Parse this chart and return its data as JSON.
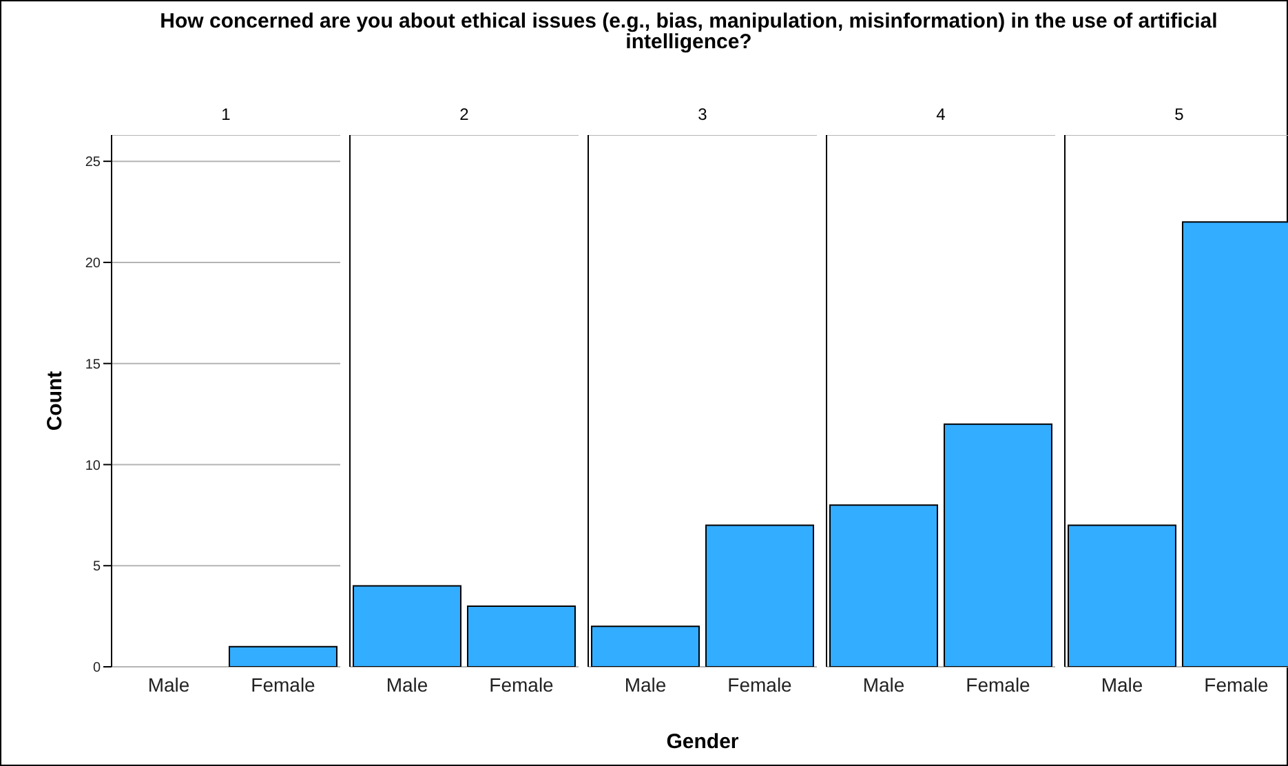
{
  "chart_data": [
    {
      "type": "bar",
      "title": "How concerned are you about ethical issues (e.g., bias, manipulation, misinformation) in the use of artificial intelligence?",
      "subtitle": "1",
      "ylabel": "Count",
      "categories": [
        "Male",
        "Female"
      ],
      "values": [
        0,
        1
      ],
      "color": "#33adff",
      "ylim": [
        0,
        26.3
      ],
      "yticks": [
        0,
        5,
        10,
        15,
        20,
        25
      ],
      "grid": "y"
    },
    {
      "type": "bar",
      "subtitle": "2",
      "categories": [
        "Male",
        "Female"
      ],
      "values": [
        4,
        3
      ],
      "color": "#33adff",
      "ylim": [
        0,
        26.3
      ],
      "yticks": [
        0,
        5,
        10,
        15,
        20,
        25
      ],
      "grid": "y",
      "tick_labels": "x"
    },
    {
      "type": "bar",
      "subtitle": "3",
      "xlabel": "Gender",
      "categories": [
        "Male",
        "Female"
      ],
      "values": [
        2,
        7
      ],
      "color": "#33adff",
      "ylim": [
        0,
        26.3
      ],
      "yticks": [
        0,
        5,
        10,
        15,
        20,
        25
      ],
      "grid": "y",
      "tick_labels": "x"
    },
    {
      "type": "bar",
      "subtitle": "4",
      "categories": [
        "Male",
        "Female"
      ],
      "values": [
        8,
        12
      ],
      "color": "#33adff",
      "ylim": [
        0,
        26.3
      ],
      "yticks": [
        0,
        5,
        10,
        15,
        20,
        25
      ],
      "grid": "y",
      "tick_labels": "x"
    },
    {
      "type": "bar",
      "subtitle": "5",
      "categories": [
        "Male",
        "Female"
      ],
      "values": [
        7,
        22
      ],
      "color": "#33adff",
      "ylim": [
        0,
        26.3
      ],
      "yticks": [
        0,
        5,
        10,
        15,
        20,
        25
      ],
      "grid": "y",
      "tick_labels": "x"
    }
  ]
}
